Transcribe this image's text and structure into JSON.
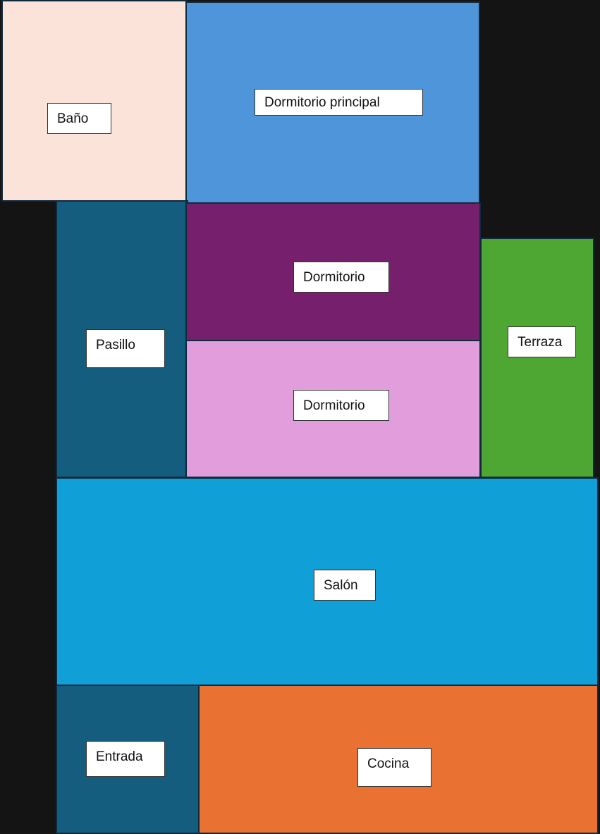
{
  "rooms": {
    "bano": {
      "label": "Baño",
      "color": "#fce3d9"
    },
    "dprincipal": {
      "label": "Dormitorio principal",
      "color": "#4f95da"
    },
    "pasillo": {
      "label": "Pasillo",
      "color": "#155d7f"
    },
    "dormitorio1": {
      "label": "Dormitorio",
      "color": "#76206d"
    },
    "dormitorio2": {
      "label": "Dormitorio",
      "color": "#e29ddd"
    },
    "terraza": {
      "label": "Terraza",
      "color": "#4ea733"
    },
    "salon": {
      "label": "Salón",
      "color": "#119fd8"
    },
    "entrada": {
      "label": "Entrada",
      "color": "#155d7f"
    },
    "cocina": {
      "label": "Cocina",
      "color": "#e97132"
    }
  },
  "background": "#141414"
}
